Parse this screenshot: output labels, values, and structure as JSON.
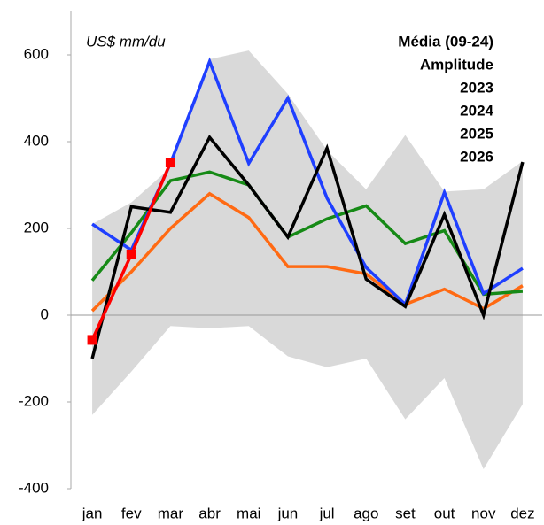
{
  "chart_data": {
    "type": "line",
    "unit_label": "US$ mm/du",
    "categories": [
      "jan",
      "fev",
      "mar",
      "abr",
      "mai",
      "jun",
      "jul",
      "ago",
      "set",
      "out",
      "nov",
      "dez"
    ],
    "ylim": [
      -400,
      650
    ],
    "yticks": [
      -400,
      -200,
      0,
      200,
      400,
      600
    ],
    "negative_tick_color": "#ff0000",
    "zero_line": true,
    "series": [
      {
        "name": "Média (09-24)",
        "color": "#ff6a13",
        "values": [
          10,
          100,
          200,
          280,
          225,
          112,
          112,
          95,
          25,
          60,
          15,
          68
        ]
      },
      {
        "name": "Amplitude",
        "color": "#d9d9d9",
        "kind": "area",
        "upper": [
          210,
          260,
          340,
          590,
          610,
          510,
          380,
          290,
          415,
          285,
          290,
          355
        ],
        "lower": [
          -230,
          -130,
          -25,
          -30,
          -25,
          -95,
          -120,
          -100,
          -240,
          -145,
          -355,
          -205
        ]
      },
      {
        "name": "2023",
        "color": "#168a16",
        "values": [
          80,
          190,
          310,
          330,
          300,
          180,
          222,
          252,
          165,
          195,
          48,
          55
        ]
      },
      {
        "name": "2024",
        "color": "#1f3fff",
        "values": [
          210,
          150,
          350,
          585,
          350,
          500,
          270,
          110,
          25,
          283,
          50,
          108
        ]
      },
      {
        "name": "2025",
        "color": "#000000",
        "values": [
          -100,
          250,
          237,
          410,
          300,
          180,
          385,
          83,
          20,
          232,
          0,
          353
        ]
      },
      {
        "name": "2026",
        "color": "#ff0000",
        "markers": true,
        "values": [
          -57,
          140,
          352,
          null,
          null,
          null,
          null,
          null,
          null,
          null,
          null,
          null
        ]
      }
    ]
  }
}
